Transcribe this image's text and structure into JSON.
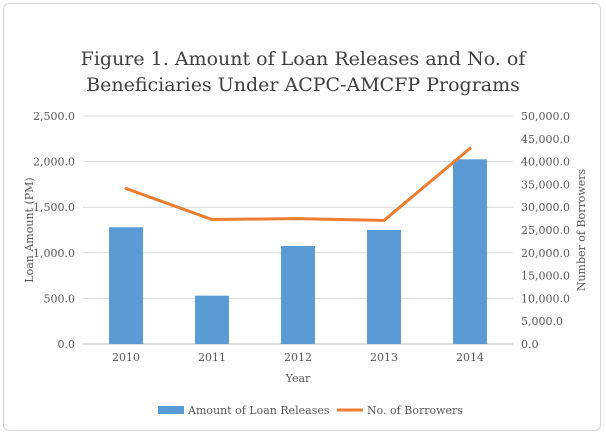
{
  "chart_data": {
    "type": "bar",
    "title_line1": "Figure 1. Amount of Loan Releases and No. of",
    "title_line2": "Beneficiaries Under ACPC-AMCFP Programs",
    "categories": [
      "2010",
      "2011",
      "2012",
      "2013",
      "2014"
    ],
    "xlabel": "Year",
    "ylabel": "Loan Amount (PM)",
    "y2label": "Number of Borrowers",
    "ylim": [
      0,
      2500
    ],
    "y2lim": [
      0,
      50000
    ],
    "yticks": [
      "0.0",
      "500.0",
      "1,000.0",
      "1,500.0",
      "2,000.0",
      "2,500.0"
    ],
    "y2ticks": [
      "0.0",
      "5,000.0",
      "10,000.0",
      "15,000.0",
      "20,000.0",
      "25,000.0",
      "30,000.0",
      "35,000.0",
      "40,000.0",
      "45,000.0",
      "50,000.0"
    ],
    "series": [
      {
        "name": "Amount of Loan Releases",
        "type": "bar",
        "axis": "left",
        "color": "#5b9bd5",
        "values": [
          1280,
          530,
          1075,
          1250,
          2025
        ]
      },
      {
        "name": "No. of Borrowers",
        "type": "line",
        "axis": "right",
        "color": "#ed7d31",
        "values": [
          34100,
          27300,
          27500,
          27100,
          42900
        ]
      }
    ],
    "grid": true,
    "legend_position": "bottom"
  }
}
